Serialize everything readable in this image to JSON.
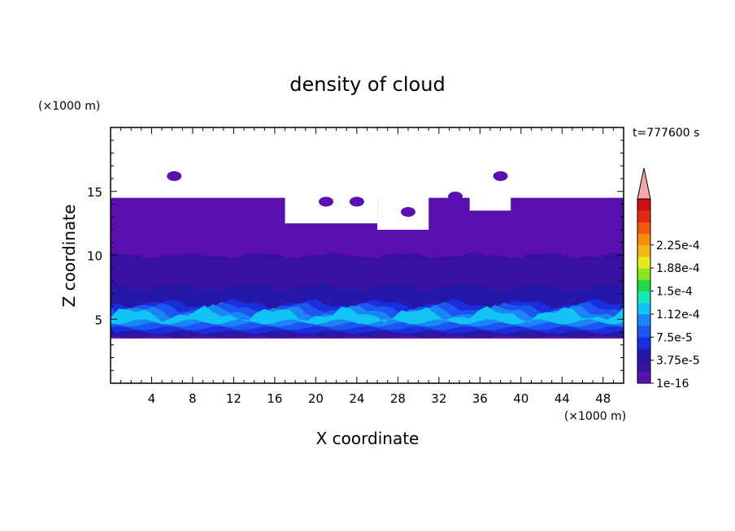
{
  "chart_data": {
    "type": "heatmap",
    "title": "density of cloud",
    "xlabel": "X coordinate",
    "ylabel": "Z coordinate",
    "x_unit": "(×1000 m)",
    "y_unit": "(×1000 m)",
    "time_label": "t=777600 s",
    "xlim": [
      0,
      50
    ],
    "ylim": [
      0,
      20
    ],
    "x_ticks": [
      "4",
      "8",
      "12",
      "16",
      "20",
      "24",
      "28",
      "32",
      "36",
      "40",
      "44",
      "48"
    ],
    "x_tick_values": [
      4,
      8,
      12,
      16,
      20,
      24,
      28,
      32,
      36,
      40,
      44,
      48
    ],
    "y_ticks": [
      "5",
      "10",
      "15"
    ],
    "y_tick_values": [
      5,
      10,
      15
    ],
    "colorbar": {
      "labels": [
        "2.25e-4",
        "1.88e-4",
        "1.5e-4",
        "1.12e-4",
        "7.5e-5",
        "3.75e-5",
        "1e-16"
      ],
      "colors": [
        "#5a10b0",
        "#3a10a0",
        "#2418a8",
        "#1a2ee0",
        "#1c55f2",
        "#1a86f6",
        "#12c4f4",
        "#18e8b8",
        "#26d846",
        "#8ee61a",
        "#e8e81a",
        "#f4b814",
        "#f48c10",
        "#f05a10",
        "#e42a14",
        "#d01010"
      ],
      "over_color": "#f4a8a8"
    },
    "bands": [
      {
        "level": "1e-16",
        "z_min": 3.5,
        "z_max": 14.5,
        "color": "#5a10b0"
      },
      {
        "level": "1.9e-5",
        "z_min": 3.6,
        "z_max": 10.0,
        "color": "#3a10a0"
      },
      {
        "level": "3.75e-5",
        "z_min": 3.8,
        "z_max": 7.5,
        "color": "#2418a8"
      },
      {
        "level": "5.6e-5",
        "z_min": 4.0,
        "z_max": 6.2,
        "color": "#1a2ee0"
      },
      {
        "level": "7.5e-5",
        "z_min": 4.3,
        "z_max": 5.9,
        "color": "#1c55f2"
      },
      {
        "level": "9.4e-5",
        "z_min": 4.6,
        "z_max": 5.6,
        "color": "#1a86f6"
      },
      {
        "level": "1.12e-4",
        "z_min": 4.8,
        "z_max": 5.4,
        "color": "#12c4f4"
      }
    ],
    "cloud_top_gaps": [
      {
        "x_min": 17,
        "x_max": 26,
        "z_top": 12.5
      },
      {
        "x_min": 26,
        "x_max": 31,
        "z_top": 12.0
      },
      {
        "x_min": 35,
        "x_max": 39,
        "z_top": 13.5
      }
    ],
    "isolated_cells": [
      {
        "x": 6.2,
        "z": 16.2
      },
      {
        "x": 38.0,
        "z": 16.2
      },
      {
        "x": 33.6,
        "z": 14.6
      },
      {
        "x": 21.0,
        "z": 14.2
      },
      {
        "x": 24.0,
        "z": 14.2
      },
      {
        "x": 29.0,
        "z": 13.4
      }
    ]
  }
}
